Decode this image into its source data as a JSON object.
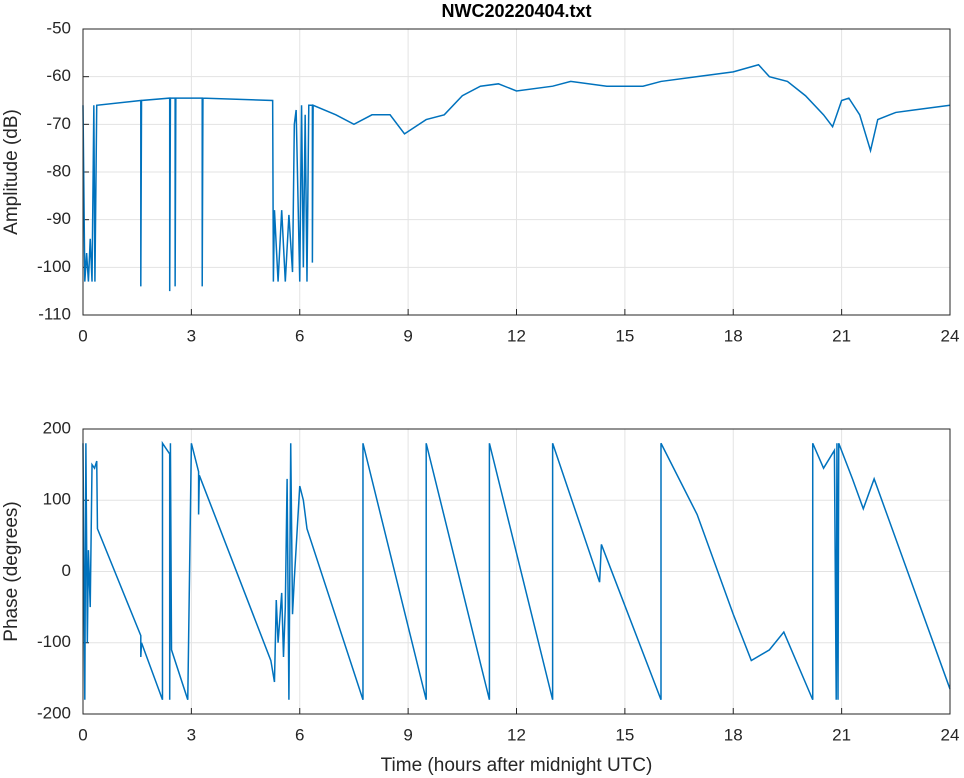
{
  "chart_data": [
    {
      "type": "line",
      "title": "NWC20220404.txt",
      "ylabel": "Amplitude (dB)",
      "xlim": [
        0,
        24
      ],
      "xticks": [
        0,
        3,
        6,
        9,
        12,
        15,
        18,
        21,
        24
      ],
      "ylim": [
        -110,
        -50
      ],
      "yticks": [
        -110,
        -100,
        -90,
        -80,
        -70,
        -60,
        -50
      ],
      "grid": true,
      "series": [
        {
          "color": "#0072bd",
          "x": [
            0,
            0.05,
            0.1,
            0.15,
            0.2,
            0.25,
            0.3,
            0.33,
            0.38,
            1.6,
            1.6,
            1.62,
            2.4,
            2.4,
            2.42,
            2.55,
            2.55,
            2.57,
            3.3,
            3.3,
            3.32,
            5.25,
            5.27,
            5.3,
            5.4,
            5.5,
            5.6,
            5.7,
            5.8,
            5.85,
            5.9,
            6.0,
            6.05,
            6.1,
            6.15,
            6.2,
            6.25,
            6.35,
            6.35,
            6.37,
            7,
            7.5,
            8,
            8.5,
            8.9,
            9.5,
            10,
            10.5,
            11,
            11.5,
            12,
            13,
            13.5,
            14.5,
            15.5,
            16,
            17,
            18,
            18.7,
            19,
            19.5,
            20,
            20.5,
            20.75,
            21,
            21.2,
            21.5,
            21.8,
            22,
            22.5,
            23,
            24
          ],
          "values": [
            -66,
            -103,
            -97,
            -103,
            -94,
            -103,
            -66,
            -103,
            -66,
            -65,
            -104,
            -65,
            -64.5,
            -105,
            -64.5,
            -64.5,
            -104,
            -64.5,
            -64.5,
            -104,
            -64.5,
            -65,
            -103,
            -88,
            -103,
            -88,
            -103,
            -89,
            -101,
            -70,
            -67,
            -103,
            -66,
            -100,
            -68,
            -103,
            -66,
            -66,
            -99,
            -66,
            -68,
            -70,
            -68,
            -68,
            -72,
            -69,
            -68,
            -64,
            -62,
            -61.5,
            -63,
            -62,
            -61,
            -62,
            -62,
            -61,
            -60,
            -59,
            -57.5,
            -60,
            -61,
            -64,
            -68,
            -70.5,
            -65,
            -64.5,
            -68,
            -75.5,
            -69,
            -67.5,
            -67,
            -66
          ]
        }
      ]
    },
    {
      "type": "line",
      "ylabel": "Phase (degrees)",
      "xlabel": "Time (hours after midnight UTC)",
      "xlim": [
        0,
        24
      ],
      "xticks": [
        0,
        3,
        6,
        9,
        12,
        15,
        18,
        21,
        24
      ],
      "ylim": [
        -200,
        200
      ],
      "yticks": [
        -200,
        -100,
        0,
        100,
        200
      ],
      "grid": true,
      "series": [
        {
          "color": "#0072bd",
          "x": [
            0,
            0.05,
            0.08,
            0.12,
            0.15,
            0.2,
            0.25,
            0.32,
            0.38,
            0.4,
            1.6,
            1.6,
            1.62,
            2.2,
            2.2,
            2.4,
            2.4,
            2.42,
            2.45,
            2.9,
            3.0,
            3.2,
            3.2,
            3.22,
            5.2,
            5.3,
            5.35,
            5.4,
            5.5,
            5.55,
            5.6,
            5.65,
            5.7,
            5.75,
            5.8,
            5.85,
            6.0,
            6.1,
            6.2,
            7.75,
            7.75,
            9.5,
            9.5,
            11.25,
            11.25,
            13.0,
            13.0,
            14.3,
            14.35,
            16.0,
            16.0,
            17,
            18,
            18.5,
            19,
            19.4,
            20.2,
            20.2,
            20.5,
            20.8,
            20.85,
            20.87,
            20.9,
            20.92,
            21.3,
            21.6,
            21.9,
            24
          ],
          "values": [
            180,
            -180,
            180,
            -100,
            30,
            -50,
            150,
            145,
            155,
            60,
            -90,
            -120,
            -100,
            -180,
            180,
            165,
            -180,
            180,
            -110,
            -180,
            180,
            140,
            80,
            135,
            -125,
            -155,
            -40,
            -100,
            -30,
            -120,
            -50,
            130,
            -180,
            180,
            -60,
            -10,
            120,
            100,
            60,
            -180,
            180,
            -180,
            180,
            -180,
            180,
            -180,
            180,
            -15,
            38,
            -180,
            180,
            80,
            -60,
            -125,
            -110,
            -85,
            -180,
            180,
            145,
            170,
            -180,
            180,
            -180,
            180,
            130,
            88,
            130,
            -165
          ]
        }
      ]
    }
  ]
}
